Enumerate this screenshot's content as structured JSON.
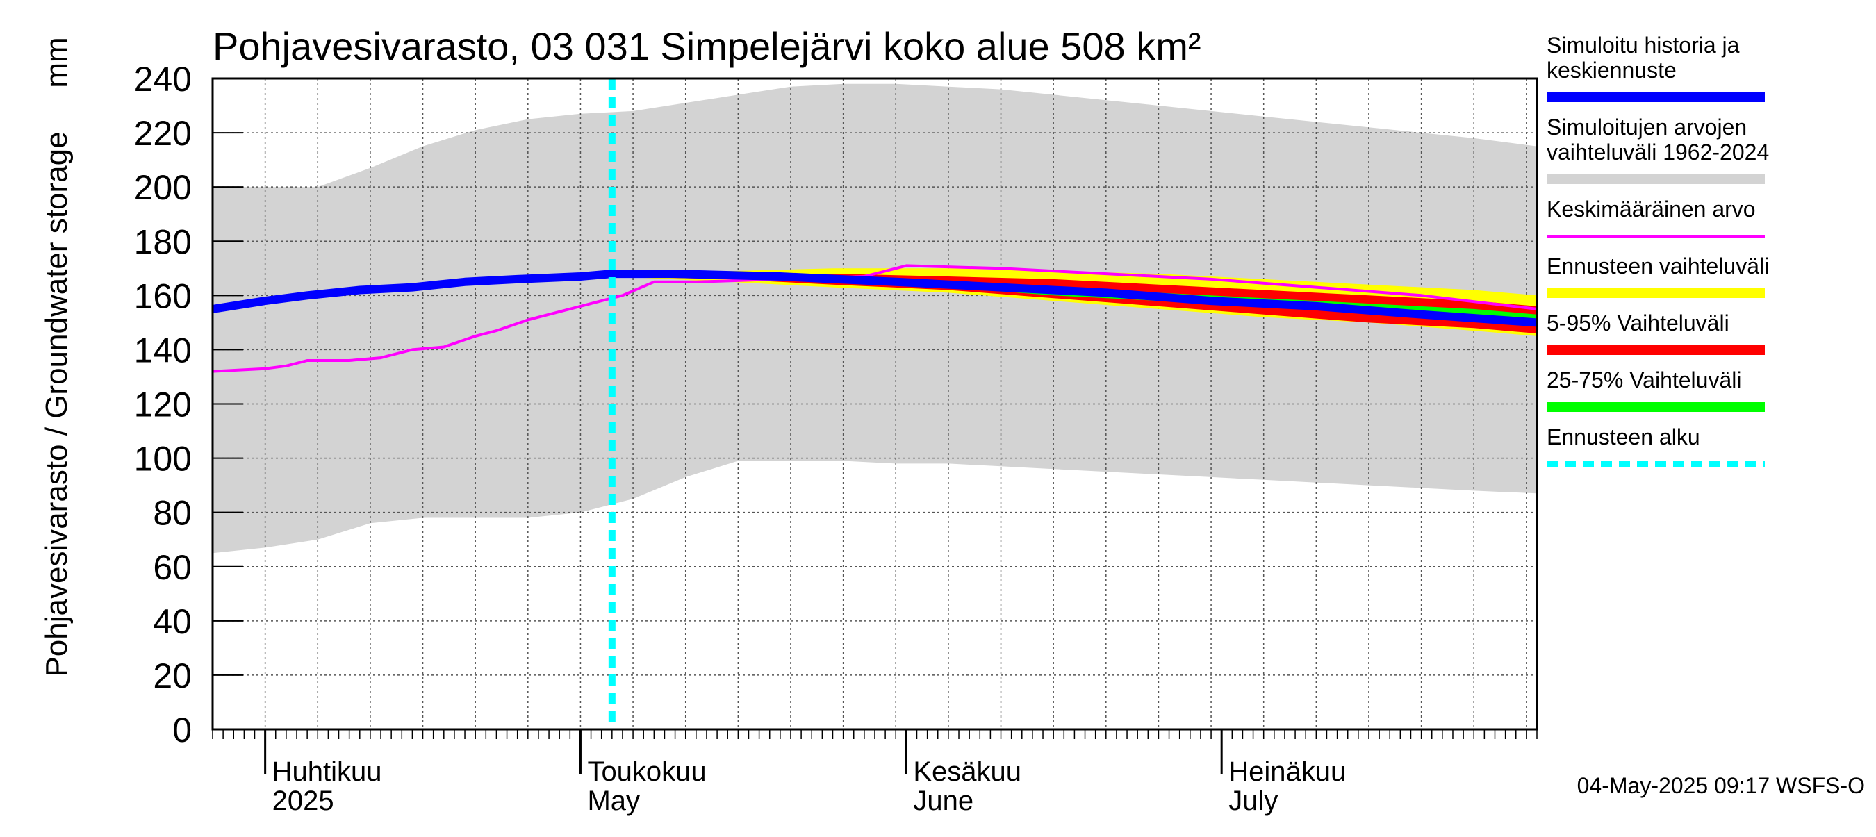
{
  "chart_data": {
    "type": "area",
    "title": "Pohjavesivarasto, 03 031 Simpelejärvi koko alue 508 km²",
    "ylabel": "Pohjavesivarasto / Groundwater storage",
    "yunit": "mm",
    "ylim": [
      0,
      240
    ],
    "yticks": [
      0,
      20,
      40,
      60,
      80,
      100,
      120,
      140,
      160,
      180,
      200,
      220,
      240
    ],
    "xlim": [
      "2025-03-27",
      "2025-07-31"
    ],
    "grid": true,
    "legend_position": "right",
    "forecast_start": "2025-05-04",
    "timestamp": "04-May-2025 09:17 WSFS-O",
    "month_labels": [
      {
        "line1": "Huhtikuu",
        "line2": "2025",
        "date": "2025-04-01"
      },
      {
        "line1": "Toukokuu",
        "line2": "May",
        "date": "2025-05-01"
      },
      {
        "line1": "Kesäkuu",
        "line2": "June",
        "date": "2025-06-01"
      },
      {
        "line1": "Heinäkuu",
        "line2": "July",
        "date": "2025-07-01"
      }
    ],
    "legend": [
      {
        "label": "Simuloitu historia ja keskiennuste",
        "color": "#0000ff",
        "style": "thick"
      },
      {
        "label": "Simuloitujen arvojen vaihteluväli 1962-2024",
        "color": "#d3d3d3",
        "style": "thick"
      },
      {
        "label": "Keskimääräinen arvo",
        "color": "#ff00ff",
        "style": "thin"
      },
      {
        "label": "Ennusteen vaihteluväli",
        "color": "#ffff00",
        "style": "thick"
      },
      {
        "label": "5-95% Vaihteluväli",
        "color": "#ff0000",
        "style": "thick"
      },
      {
        "label": "25-75% Vaihteluväli",
        "color": "#00ff00",
        "style": "thick"
      },
      {
        "label": "Ennusteen alku",
        "color": "#00ffff",
        "style": "dashed"
      }
    ],
    "series": {
      "range_1962_2024": {
        "x": [
          "2025-03-27",
          "2025-04-01",
          "2025-04-06",
          "2025-04-11",
          "2025-04-16",
          "2025-04-21",
          "2025-04-26",
          "2025-05-01",
          "2025-05-06",
          "2025-05-11",
          "2025-05-16",
          "2025-05-21",
          "2025-05-26",
          "2025-05-31",
          "2025-06-05",
          "2025-06-10",
          "2025-06-15",
          "2025-06-20",
          "2025-06-25",
          "2025-06-30",
          "2025-07-05",
          "2025-07-10",
          "2025-07-15",
          "2025-07-20",
          "2025-07-25",
          "2025-07-31"
        ],
        "upper": [
          200,
          200,
          200,
          207,
          215,
          221,
          225,
          227,
          228,
          231,
          234,
          237,
          238,
          238,
          237,
          236,
          234,
          232,
          230,
          228,
          226,
          224,
          222,
          220,
          218,
          215
        ],
        "lower": [
          65,
          67,
          70,
          76,
          78,
          78,
          78,
          80,
          85,
          93,
          99,
          99,
          99,
          98,
          98,
          97,
          96,
          95,
          94,
          93,
          92,
          91,
          90,
          89,
          88,
          87
        ]
      },
      "forecast_range": {
        "x": [
          "2025-05-04",
          "2025-05-15",
          "2025-05-25",
          "2025-06-05",
          "2025-06-15",
          "2025-06-25",
          "2025-07-05",
          "2025-07-15",
          "2025-07-25",
          "2025-07-31"
        ],
        "upper": [
          168,
          169,
          170,
          170,
          169,
          168,
          166,
          164,
          162,
          160
        ],
        "lower": [
          167,
          165,
          163,
          161,
          158,
          155,
          152,
          150,
          147,
          145
        ]
      },
      "p5_95": {
        "x": [
          "2025-05-04",
          "2025-05-15",
          "2025-05-25",
          "2025-06-05",
          "2025-06-15",
          "2025-06-25",
          "2025-07-05",
          "2025-07-15",
          "2025-07-25",
          "2025-07-31"
        ],
        "upper": [
          168,
          168,
          168,
          167,
          166,
          164,
          162,
          160,
          158,
          156
        ],
        "lower": [
          167,
          166,
          164,
          162,
          159,
          156,
          153,
          150,
          148,
          146
        ]
      },
      "p25_75": {
        "x": [
          "2025-05-04",
          "2025-05-15",
          "2025-05-25",
          "2025-06-05",
          "2025-06-15",
          "2025-06-25",
          "2025-07-05",
          "2025-07-15",
          "2025-07-25",
          "2025-07-31"
        ],
        "upper": [
          168,
          168,
          167,
          165,
          163,
          161,
          159,
          157,
          155,
          153
        ],
        "lower": [
          167,
          167,
          165,
          163,
          160,
          158,
          156,
          154,
          152,
          150
        ]
      },
      "mean_value": {
        "x": [
          "2025-03-27",
          "2025-04-01",
          "2025-04-03",
          "2025-04-05",
          "2025-04-09",
          "2025-04-12",
          "2025-04-15",
          "2025-04-18",
          "2025-04-21",
          "2025-04-23",
          "2025-04-26",
          "2025-04-28",
          "2025-05-01",
          "2025-05-03",
          "2025-05-05",
          "2025-05-08",
          "2025-05-12",
          "2025-05-20",
          "2025-05-28",
          "2025-06-01",
          "2025-06-10",
          "2025-06-20",
          "2025-06-30",
          "2025-07-10",
          "2025-07-20",
          "2025-07-31"
        ],
        "y": [
          132,
          133,
          134,
          136,
          136,
          137,
          140,
          141,
          145,
          147,
          151,
          153,
          156,
          158,
          160,
          165,
          165,
          166,
          167,
          171,
          170,
          168,
          166,
          163,
          160,
          155
        ]
      },
      "simulated_history": {
        "x": [
          "2025-03-27",
          "2025-04-01",
          "2025-04-05",
          "2025-04-10",
          "2025-04-15",
          "2025-04-20",
          "2025-04-25",
          "2025-05-01",
          "2025-05-04",
          "2025-05-10",
          "2025-05-20",
          "2025-05-31",
          "2025-06-10",
          "2025-06-20",
          "2025-06-30",
          "2025-07-10",
          "2025-07-20",
          "2025-07-31"
        ],
        "y": [
          155,
          158,
          160,
          162,
          163,
          165,
          166,
          167,
          168,
          168,
          167,
          165,
          163,
          161,
          158,
          156,
          153,
          150
        ]
      }
    }
  }
}
